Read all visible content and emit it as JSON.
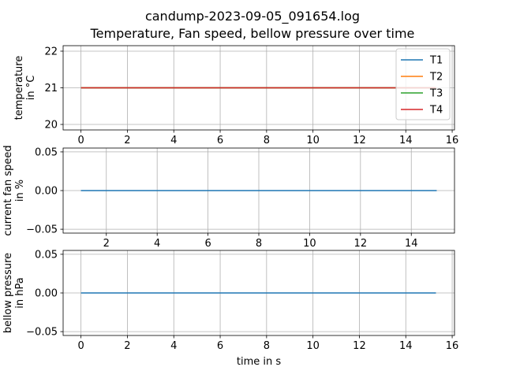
{
  "figure": {
    "title_line1": "candump-2023-09-05_091654.log",
    "title_line2": "Temperature, Fan speed, bellow pressure over time"
  },
  "chart_data": [
    {
      "type": "line",
      "ylabel": "temperature\nin °C",
      "xlabel": "",
      "xlim": [
        -0.77,
        16.1
      ],
      "ylim": [
        19.85,
        22.15
      ],
      "xticks": [
        0,
        2,
        4,
        6,
        8,
        10,
        12,
        14,
        16
      ],
      "yticks": [
        20,
        21,
        22
      ],
      "grid": true,
      "legend_position": "top-right",
      "series": [
        {
          "name": "T1",
          "color": "#1f77b4",
          "x": [
            0,
            15.3
          ],
          "y": [
            21,
            21
          ]
        },
        {
          "name": "T2",
          "color": "#ff7f0e",
          "x": [
            0,
            15.3
          ],
          "y": [
            21,
            21
          ]
        },
        {
          "name": "T3",
          "color": "#2ca02c",
          "x": [
            0,
            15.3
          ],
          "y": [
            21,
            21
          ]
        },
        {
          "name": "T4",
          "color": "#d62728",
          "x": [
            0,
            15.3
          ],
          "y": [
            21,
            21
          ]
        }
      ]
    },
    {
      "type": "line",
      "ylabel": "current fan speed\nin %",
      "xlabel": "",
      "xlim": [
        0.3,
        15.7
      ],
      "ylim": [
        -0.055,
        0.055
      ],
      "xticks": [
        2,
        4,
        6,
        8,
        10,
        12,
        14
      ],
      "yticks": [
        -0.05,
        0.0,
        0.05
      ],
      "ytick_labels": [
        "−0.05",
        "0.00",
        "0.05"
      ],
      "grid": true,
      "series": [
        {
          "color": "#1f77b4",
          "x": [
            1.0,
            15.0
          ],
          "y": [
            0,
            0
          ]
        }
      ]
    },
    {
      "type": "line",
      "ylabel": "bellow pressure\nin hPa",
      "xlabel": "time in s",
      "xlim": [
        -0.77,
        16.1
      ],
      "ylim": [
        -0.055,
        0.055
      ],
      "xticks": [
        0,
        2,
        4,
        6,
        8,
        10,
        12,
        14,
        16
      ],
      "yticks": [
        -0.05,
        0.0,
        0.05
      ],
      "ytick_labels": [
        "−0.05",
        "0.00",
        "0.05"
      ],
      "grid": true,
      "series": [
        {
          "color": "#1f77b4",
          "x": [
            0,
            15.3
          ],
          "y": [
            0,
            0
          ]
        }
      ]
    }
  ]
}
